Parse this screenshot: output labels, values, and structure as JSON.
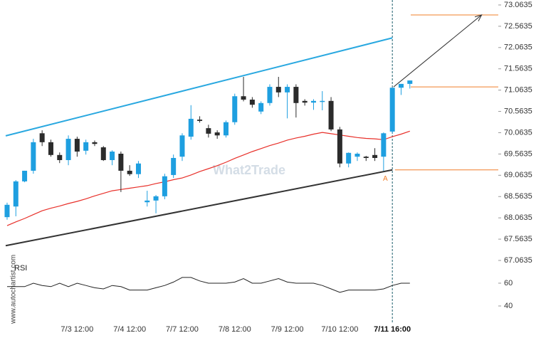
{
  "chart_data": [
    {
      "type": "candlestick",
      "watermark": "What2Trade",
      "source": "www.autochartist.com",
      "categories": [
        null,
        null,
        null,
        null,
        null,
        null,
        null,
        null,
        "7/3 12:00",
        null,
        null,
        null,
        null,
        null,
        "7/4 12:00",
        null,
        null,
        null,
        null,
        null,
        "7/7 12:00",
        null,
        null,
        null,
        null,
        null,
        "7/8 12:00",
        null,
        null,
        null,
        null,
        null,
        "7/9 12:00",
        null,
        null,
        null,
        null,
        null,
        "7/10 12:00",
        null,
        null,
        null,
        null,
        null,
        "7/11 16:00",
        null,
        null
      ],
      "current": 44,
      "open": [
        68.08,
        68.33,
        68.92,
        69.17,
        70.05,
        69.84,
        69.54,
        69.42,
        69.92,
        69.64,
        69.84,
        69.72,
        69.42,
        69.57,
        69.17,
        69.09,
        68.43,
        68.47,
        68.57,
        69.07,
        69.5,
        69.97,
        70.37,
        70.17,
        70.07,
        70.0,
        70.31,
        70.92,
        70.84,
        70.56,
        70.76,
        71.14,
        71.01,
        71.14,
        70.81,
        70.77,
        70.79,
        70.81,
        70.14,
        69.34,
        69.5,
        69.5,
        69.54,
        69.5,
        70.09,
        71.12,
        71.21
      ],
      "high": [
        68.42,
        68.95,
        69.17,
        69.92,
        70.12,
        69.9,
        69.6,
        70.0,
        69.97,
        69.9,
        69.88,
        69.75,
        69.65,
        69.62,
        69.3,
        69.4,
        68.7,
        68.6,
        69.1,
        69.55,
        70.05,
        70.71,
        70.45,
        70.25,
        70.12,
        70.35,
        70.98,
        71.375,
        70.9,
        70.8,
        71.2,
        71.375,
        71.2,
        71.2,
        70.85,
        70.85,
        71.04,
        70.9,
        70.2,
        69.6,
        69.6,
        69.52,
        69.7,
        70.07,
        71.12,
        71.21,
        71.29
      ],
      "low": [
        68.02,
        68.1,
        68.9,
        69.1,
        69.75,
        69.5,
        69.35,
        69.3,
        69.5,
        69.55,
        69.75,
        69.4,
        69.3,
        68.67,
        69.05,
        69.0,
        68.33,
        68.17,
        68.5,
        69.0,
        69.4,
        69.9,
        70.3,
        69.95,
        69.92,
        69.95,
        70.25,
        70.8,
        70.65,
        70.5,
        70.7,
        70.9,
        70.4,
        70.42,
        70.7,
        70.6,
        70.59,
        70.1,
        69.25,
        69.25,
        69.4,
        69.4,
        69.4,
        69.17,
        70.05,
        70.95,
        71.1
      ],
      "close": [
        68.37,
        68.92,
        69.17,
        69.84,
        69.84,
        69.54,
        69.42,
        69.92,
        69.62,
        69.84,
        69.8,
        69.42,
        69.62,
        69.17,
        69.09,
        69.34,
        68.47,
        68.57,
        69.04,
        69.47,
        70.0,
        70.39,
        70.34,
        70.04,
        70.0,
        70.31,
        70.92,
        70.84,
        70.72,
        70.76,
        71.14,
        71.01,
        71.14,
        70.76,
        70.77,
        70.81,
        70.81,
        70.14,
        69.34,
        69.59,
        69.57,
        69.47,
        69.47,
        70.05,
        71.12,
        71.21,
        71.29
      ],
      "up_color": "#1e9fe0",
      "down_color": "#2b2b2b",
      "ma": {
        "color": "#e8302a",
        "values": [
          67.88,
          67.97,
          68.05,
          68.14,
          68.23,
          68.29,
          68.34,
          68.4,
          68.45,
          68.51,
          68.58,
          68.64,
          68.7,
          68.73,
          68.76,
          68.79,
          68.82,
          68.87,
          68.91,
          68.96,
          69.0,
          69.07,
          69.15,
          69.22,
          69.29,
          69.37,
          69.46,
          69.54,
          69.62,
          69.69,
          69.76,
          69.82,
          69.89,
          69.94,
          69.98,
          70.03,
          70.07,
          70.04,
          70.01,
          69.98,
          69.95,
          69.93,
          69.92,
          69.9,
          69.97,
          70.03,
          70.1
        ]
      },
      "trendlines": [
        {
          "color": "#29a8e0",
          "start": [
            -0.16,
            69.99
          ],
          "end": [
            44,
            72.29
          ]
        },
        {
          "color": "#333333",
          "start": [
            -0.16,
            67.41
          ],
          "end": [
            44,
            69.19
          ]
        }
      ],
      "arrow": {
        "color": "#333333",
        "start": [
          44.15,
          71.14
        ],
        "end": [
          54.2,
          72.83
        ]
      },
      "levels": [
        {
          "color": "#f07f2a",
          "from": 46.1,
          "price": 72.83
        },
        {
          "color": "#f07f2a",
          "from": 46.1,
          "price": 71.14
        },
        {
          "color": "#f07f2a",
          "from": 44.3,
          "price": 69.19
        }
      ],
      "annotations": [
        {
          "text": "A",
          "x": 43.2,
          "y": 68.98,
          "color": "#f07f2a"
        }
      ],
      "xlim": [
        -0.16,
        56.1
      ],
      "ylim": [
        67.03,
        73.18
      ],
      "yticks": [
        73.0635,
        72.5635,
        72.0635,
        71.5635,
        71.0635,
        70.5635,
        70.0635,
        69.5635,
        69.0635,
        68.5635,
        68.0635,
        67.5635,
        67.0635
      ]
    },
    {
      "type": "line",
      "title": "RSI",
      "color": "#222222",
      "values": [
        57,
        57,
        57,
        60,
        58,
        57,
        60,
        57,
        60,
        58,
        56,
        55,
        58,
        57,
        54,
        54,
        54,
        56,
        58,
        61,
        65,
        65,
        62,
        60,
        60,
        60,
        61,
        64,
        60,
        60,
        62,
        64,
        61,
        60,
        60,
        60,
        58,
        55,
        52,
        54,
        54,
        54,
        54,
        55,
        58,
        60,
        60
      ],
      "ylim": [
        24.4,
        76.2
      ],
      "yticks": [
        60,
        40
      ]
    }
  ]
}
